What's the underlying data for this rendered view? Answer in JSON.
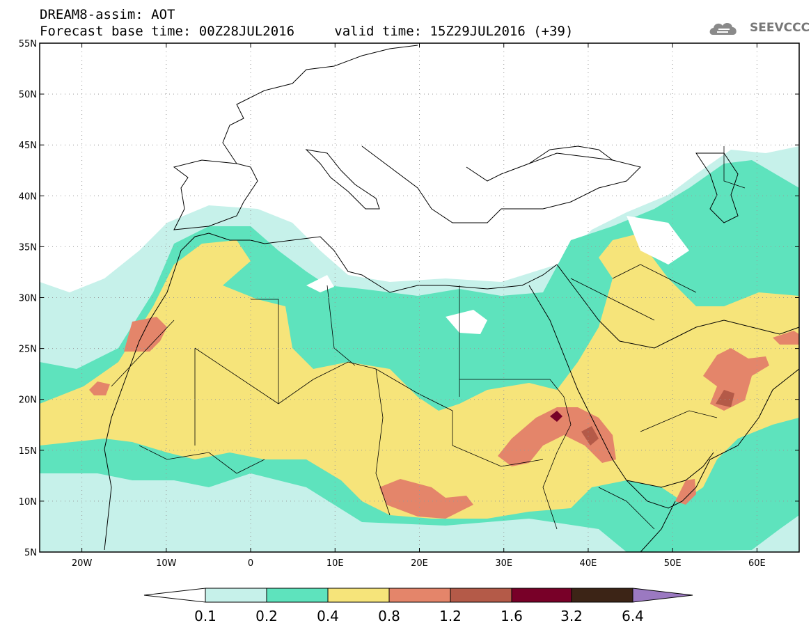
{
  "header": {
    "title": "DREAM8-assim: AOT",
    "base_time_label": "Forecast base time: 00Z28JUL2016",
    "valid_time_label": "valid time: 15Z29JUL2016 (+39)"
  },
  "logo": {
    "text": "SEEVCCC"
  },
  "map": {
    "lon_labels": [
      "20W",
      "10W",
      "0",
      "10E",
      "20E",
      "30E",
      "40E",
      "50E",
      "60E"
    ],
    "lat_labels": [
      "55N",
      "50N",
      "45N",
      "40N",
      "35N",
      "30N",
      "25N",
      "20N",
      "15N",
      "10N",
      "5N"
    ],
    "extent": {
      "lon": [
        -25,
        65
      ],
      "lat": [
        5,
        55
      ]
    },
    "gridlines": "dotted"
  },
  "colorbar": {
    "levels": [
      "0.1",
      "0.2",
      "0.4",
      "0.8",
      "1.2",
      "1.6",
      "3.2",
      "6.4"
    ],
    "colors": [
      "#ffffff",
      "#c6f1ea",
      "#5ee3bd",
      "#f6e47a",
      "#e4856a",
      "#b45a48",
      "#780028",
      "#3c2416",
      "#9b79c1"
    ]
  }
}
